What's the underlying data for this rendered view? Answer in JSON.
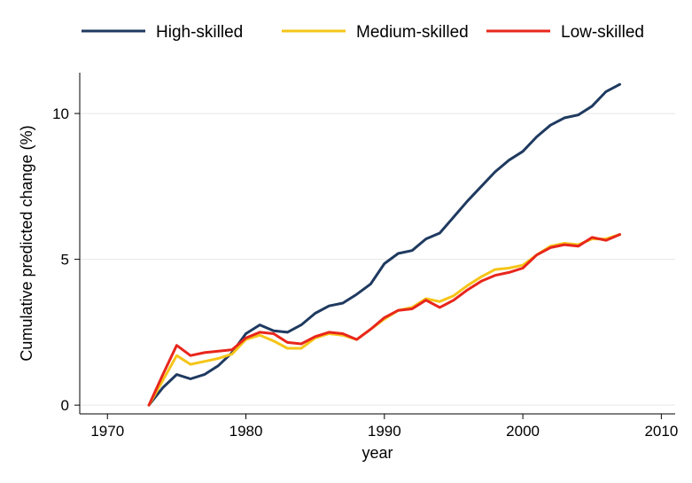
{
  "chart_data": {
    "type": "line",
    "title": "",
    "xlabel": "year",
    "ylabel": "Cumulative predicted change (%)",
    "xlim": [
      1968,
      2011
    ],
    "ylim": [
      -0.3,
      11.4
    ],
    "x_ticks": [
      1970,
      1980,
      1990,
      2000,
      2010
    ],
    "x_tick_labels": [
      "1970",
      "1980",
      "1990",
      "2000",
      "2010"
    ],
    "y_ticks": [
      0,
      5,
      10
    ],
    "y_tick_labels": [
      "0",
      "5",
      "10"
    ],
    "grid": true,
    "legend_position": "top",
    "x": [
      1973,
      1974,
      1975,
      1976,
      1977,
      1978,
      1979,
      1980,
      1981,
      1982,
      1983,
      1984,
      1985,
      1986,
      1987,
      1988,
      1989,
      1990,
      1991,
      1992,
      1993,
      1994,
      1995,
      1996,
      1997,
      1998,
      1999,
      2000,
      2001,
      2002,
      2003,
      2004,
      2005,
      2006,
      2007
    ],
    "series": [
      {
        "name": "High-skilled",
        "color": "#1f3a60",
        "values": [
          0,
          0.6,
          1.05,
          0.9,
          1.05,
          1.35,
          1.8,
          2.45,
          2.75,
          2.55,
          2.5,
          2.75,
          3.15,
          3.4,
          3.5,
          3.8,
          4.15,
          4.85,
          5.2,
          5.3,
          5.7,
          5.9,
          6.45,
          7.0,
          7.5,
          8.0,
          8.4,
          8.7,
          9.2,
          9.6,
          9.85,
          9.95,
          10.25,
          10.75,
          11.0
        ]
      },
      {
        "name": "Medium-skilled",
        "color": "#f5c518",
        "values": [
          0,
          0.85,
          1.7,
          1.4,
          1.5,
          1.6,
          1.75,
          2.25,
          2.4,
          2.2,
          1.95,
          1.95,
          2.3,
          2.45,
          2.4,
          2.25,
          2.6,
          2.95,
          3.25,
          3.35,
          3.65,
          3.55,
          3.75,
          4.1,
          4.4,
          4.65,
          4.7,
          4.8,
          5.15,
          5.45,
          5.55,
          5.5,
          5.7,
          5.7,
          5.85
        ]
      },
      {
        "name": "Low-skilled",
        "color": "#e8261c",
        "values": [
          0,
          1.05,
          2.05,
          1.7,
          1.8,
          1.85,
          1.9,
          2.3,
          2.5,
          2.45,
          2.15,
          2.1,
          2.35,
          2.5,
          2.45,
          2.25,
          2.6,
          3.0,
          3.25,
          3.3,
          3.6,
          3.35,
          3.6,
          3.95,
          4.25,
          4.45,
          4.55,
          4.7,
          5.15,
          5.4,
          5.5,
          5.45,
          5.75,
          5.65,
          5.85
        ]
      }
    ]
  }
}
